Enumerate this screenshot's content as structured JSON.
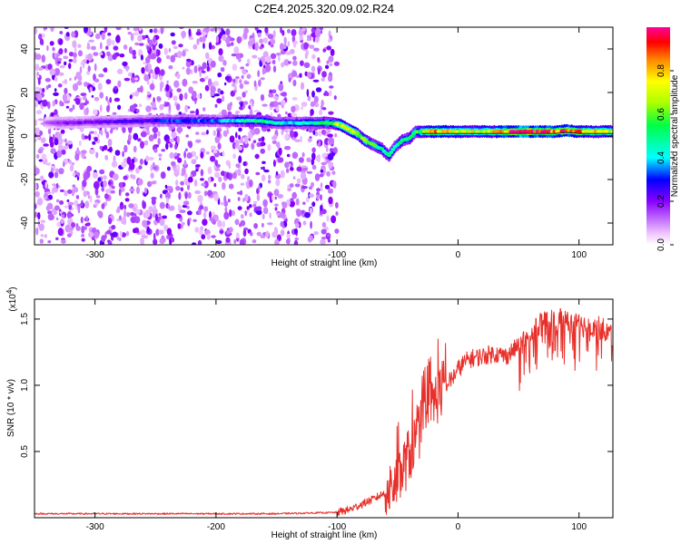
{
  "title": "C2E4.2025.320.09.02.R24",
  "chart_data": [
    {
      "type": "heatmap",
      "title": "C2E4.2025.320.09.02.R24",
      "xlabel": "Height of straight line (km)",
      "ylabel": "Frequency (Hz)",
      "xlim": [
        -350,
        128
      ],
      "ylim": [
        -50,
        50
      ],
      "xticks": [
        "-300",
        "-200",
        "-100",
        "0",
        "100"
      ],
      "xtick_values": [
        -300,
        -200,
        -100,
        0,
        100
      ],
      "yticks": [
        "40",
        "20",
        "0",
        "-20",
        "-40"
      ],
      "ytick_values": [
        40,
        20,
        0,
        -20,
        -40
      ],
      "colorbar": {
        "label": "Normalized spectral amplitude",
        "range": [
          0,
          1
        ],
        "ticks": [
          "0.0",
          "0.2",
          "0.4",
          "0.6",
          "0.8"
        ],
        "tick_values": [
          0.0,
          0.2,
          0.4,
          0.6,
          0.8
        ]
      },
      "noise_region_x": [
        -350,
        -100
      ],
      "ridge": [
        {
          "x": -340,
          "y": 6,
          "a": 0.12
        },
        {
          "x": -330,
          "y": 6,
          "a": 0.18
        },
        {
          "x": -255,
          "y": 7,
          "a": 0.25
        },
        {
          "x": -245,
          "y": 7,
          "a": 0.3
        },
        {
          "x": -195,
          "y": 7,
          "a": 0.35
        },
        {
          "x": -180,
          "y": 7,
          "a": 0.45
        },
        {
          "x": -165,
          "y": 7,
          "a": 0.5
        },
        {
          "x": -150,
          "y": 6,
          "a": 0.45
        },
        {
          "x": -135,
          "y": 6,
          "a": 0.4
        },
        {
          "x": -120,
          "y": 6,
          "a": 0.45
        },
        {
          "x": -105,
          "y": 6,
          "a": 0.55
        },
        {
          "x": -97,
          "y": 5,
          "a": 0.7
        },
        {
          "x": -90,
          "y": 3,
          "a": 0.75
        },
        {
          "x": -83,
          "y": 1,
          "a": 0.7
        },
        {
          "x": -77,
          "y": -2,
          "a": 0.6
        },
        {
          "x": -70,
          "y": -4,
          "a": 0.55
        },
        {
          "x": -63,
          "y": -6,
          "a": 0.5
        },
        {
          "x": -57,
          "y": -9,
          "a": 0.45
        },
        {
          "x": -52,
          "y": -5,
          "a": 0.45
        },
        {
          "x": -46,
          "y": -2,
          "a": 0.55
        },
        {
          "x": -40,
          "y": -1,
          "a": 0.5
        },
        {
          "x": -35,
          "y": 2,
          "a": 0.55
        },
        {
          "x": -30,
          "y": 2,
          "a": 0.6
        },
        {
          "x": -20,
          "y": 2,
          "a": 0.85
        },
        {
          "x": -10,
          "y": 2,
          "a": 0.75
        },
        {
          "x": 0,
          "y": 2,
          "a": 0.7
        },
        {
          "x": 10,
          "y": 2,
          "a": 0.7
        },
        {
          "x": 20,
          "y": 2,
          "a": 0.7
        },
        {
          "x": 30,
          "y": 2,
          "a": 0.75
        },
        {
          "x": 40,
          "y": 2,
          "a": 0.85
        },
        {
          "x": 50,
          "y": 2,
          "a": 1.0
        },
        {
          "x": 60,
          "y": 2,
          "a": 1.0
        },
        {
          "x": 70,
          "y": 2,
          "a": 0.95
        },
        {
          "x": 80,
          "y": 2,
          "a": 0.85
        },
        {
          "x": 90,
          "y": 2.5,
          "a": 0.9
        },
        {
          "x": 100,
          "y": 2,
          "a": 0.85
        },
        {
          "x": 110,
          "y": 2,
          "a": 0.8
        },
        {
          "x": 120,
          "y": 2,
          "a": 0.75
        },
        {
          "x": 128,
          "y": 2,
          "a": 0.7
        }
      ]
    },
    {
      "type": "line",
      "xlabel": "Height of straight line (km)",
      "ylabel": "SNR (10 * v/v)",
      "y_multiplier": "(x10",
      "y_multiplier_exp": "4",
      "y_multiplier_close": ")",
      "xlim": [
        -350,
        128
      ],
      "ylim": [
        0,
        1.65
      ],
      "xticks": [
        "-300",
        "-200",
        "-100",
        "0",
        "100"
      ],
      "xtick_values": [
        -300,
        -200,
        -100,
        0,
        100
      ],
      "yticks": [
        "0.5",
        "1.0",
        "1.5"
      ],
      "ytick_values": [
        0.5,
        1.0,
        1.5
      ],
      "series": [
        {
          "name": "SNR",
          "color": "#e8302a",
          "x": [
            -350,
            -300,
            -250,
            -200,
            -150,
            -100,
            -90,
            -80,
            -70,
            -60,
            -55,
            -50,
            -45,
            -40,
            -35,
            -30,
            -25,
            -20,
            -15,
            -10,
            -5,
            0,
            5,
            10,
            20,
            30,
            40,
            50,
            55,
            60,
            65,
            70,
            80,
            90,
            100,
            110,
            120,
            128
          ],
          "y": [
            0.03,
            0.03,
            0.03,
            0.03,
            0.03,
            0.04,
            0.06,
            0.1,
            0.14,
            0.19,
            0.22,
            0.26,
            0.38,
            0.48,
            0.58,
            0.7,
            0.78,
            0.88,
            0.95,
            1.0,
            1.05,
            1.12,
            1.17,
            1.2,
            1.22,
            1.24,
            1.22,
            1.3,
            1.35,
            1.38,
            1.45,
            1.46,
            1.5,
            1.48,
            1.45,
            1.45,
            1.42,
            1.38
          ]
        }
      ]
    }
  ]
}
